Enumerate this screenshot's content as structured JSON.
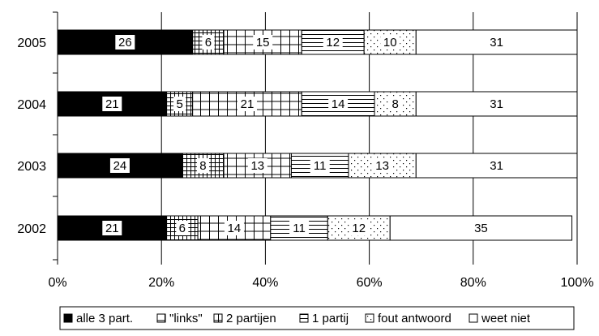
{
  "chart_data": {
    "type": "bar",
    "orientation": "horizontal",
    "stacked": true,
    "percent": true,
    "categories": [
      "2005",
      "2004",
      "2003",
      "2002"
    ],
    "series": [
      {
        "name": "alle 3 part.",
        "values": [
          26,
          21,
          24,
          21
        ],
        "pattern": "solid-black"
      },
      {
        "name": "\"links\"",
        "values": [
          6,
          5,
          8,
          6
        ],
        "pattern": "dense-grid"
      },
      {
        "name": "2 partijen",
        "values": [
          15,
          21,
          13,
          14
        ],
        "pattern": "grid"
      },
      {
        "name": "1 partij",
        "values": [
          12,
          14,
          11,
          11
        ],
        "pattern": "horizontal-lines"
      },
      {
        "name": "fout antwoord",
        "values": [
          10,
          8,
          13,
          12
        ],
        "pattern": "dots"
      },
      {
        "name": "weet niet",
        "values": [
          31,
          31,
          31,
          35
        ],
        "pattern": "white"
      }
    ],
    "xlim": [
      0,
      100
    ],
    "x_ticks": [
      "0%",
      "20%",
      "40%",
      "60%",
      "80%",
      "100%"
    ],
    "grid": true,
    "legend_position": "bottom"
  }
}
